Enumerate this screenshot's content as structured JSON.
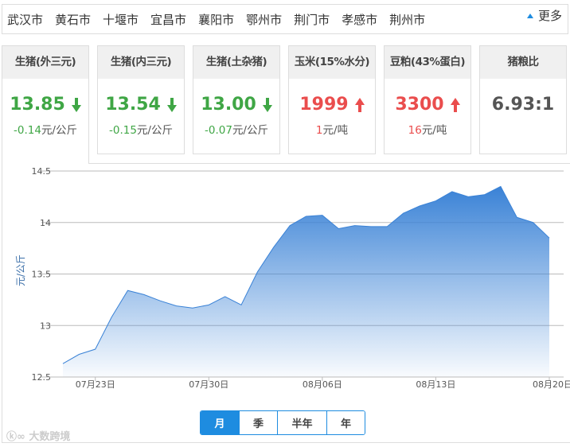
{
  "cities": [
    "武汉市",
    "黄石市",
    "十堰市",
    "宜昌市",
    "襄阳市",
    "鄂州市",
    "荆门市",
    "孝感市",
    "荆州市"
  ],
  "more_label": "更多",
  "cards": [
    {
      "title": "生猪(外三元)",
      "value": "13.85",
      "direction": "down",
      "change": "-0.14",
      "unit": "元/公斤"
    },
    {
      "title": "生猪(内三元)",
      "value": "13.54",
      "direction": "down",
      "change": "-0.15",
      "unit": "元/公斤"
    },
    {
      "title": "生猪(土杂猪)",
      "value": "13.00",
      "direction": "down",
      "change": "-0.07",
      "unit": "元/公斤"
    },
    {
      "title": "玉米(15%水分)",
      "value": "1999",
      "direction": "up",
      "change": "1",
      "unit": "元/吨"
    },
    {
      "title": "豆粕(43%蛋白)",
      "value": "3300",
      "direction": "up",
      "change": "16",
      "unit": "元/吨"
    },
    {
      "title": "猪粮比",
      "value": "6.93:1"
    }
  ],
  "colors": {
    "down": "#3fa645",
    "up": "#ea4d4d",
    "accent": "#1e8ce0",
    "area_top": "#3a82d6"
  },
  "chart_data": {
    "type": "area",
    "ylabel": "元/公斤",
    "ylim": [
      12.5,
      14.5
    ],
    "yticks": [
      "12.5",
      "13",
      "13.5",
      "14",
      "14.5"
    ],
    "xticks": [
      "07月23日",
      "07月30日",
      "08月06日",
      "08月13日",
      "08月20日"
    ],
    "grid": true,
    "x": [
      "07-21",
      "07-22",
      "07-23",
      "07-24",
      "07-25",
      "07-26",
      "07-27",
      "07-28",
      "07-29",
      "07-30",
      "07-31",
      "08-01",
      "08-02",
      "08-03",
      "08-04",
      "08-05",
      "08-06",
      "08-07",
      "08-08",
      "08-09",
      "08-10",
      "08-11",
      "08-12",
      "08-13",
      "08-14",
      "08-15",
      "08-16",
      "08-17",
      "08-18",
      "08-19",
      "08-20"
    ],
    "values": [
      12.63,
      12.72,
      12.77,
      13.08,
      13.34,
      13.3,
      13.24,
      13.19,
      13.17,
      13.2,
      13.28,
      13.2,
      13.52,
      13.76,
      13.97,
      14.06,
      14.07,
      13.94,
      13.97,
      13.96,
      13.96,
      14.09,
      14.16,
      14.21,
      14.3,
      14.25,
      14.27,
      14.35,
      14.05,
      14.0,
      13.85
    ]
  },
  "ranges": [
    "月",
    "季",
    "半年",
    "年"
  ],
  "active_range": "月",
  "watermark": "大数跨境"
}
